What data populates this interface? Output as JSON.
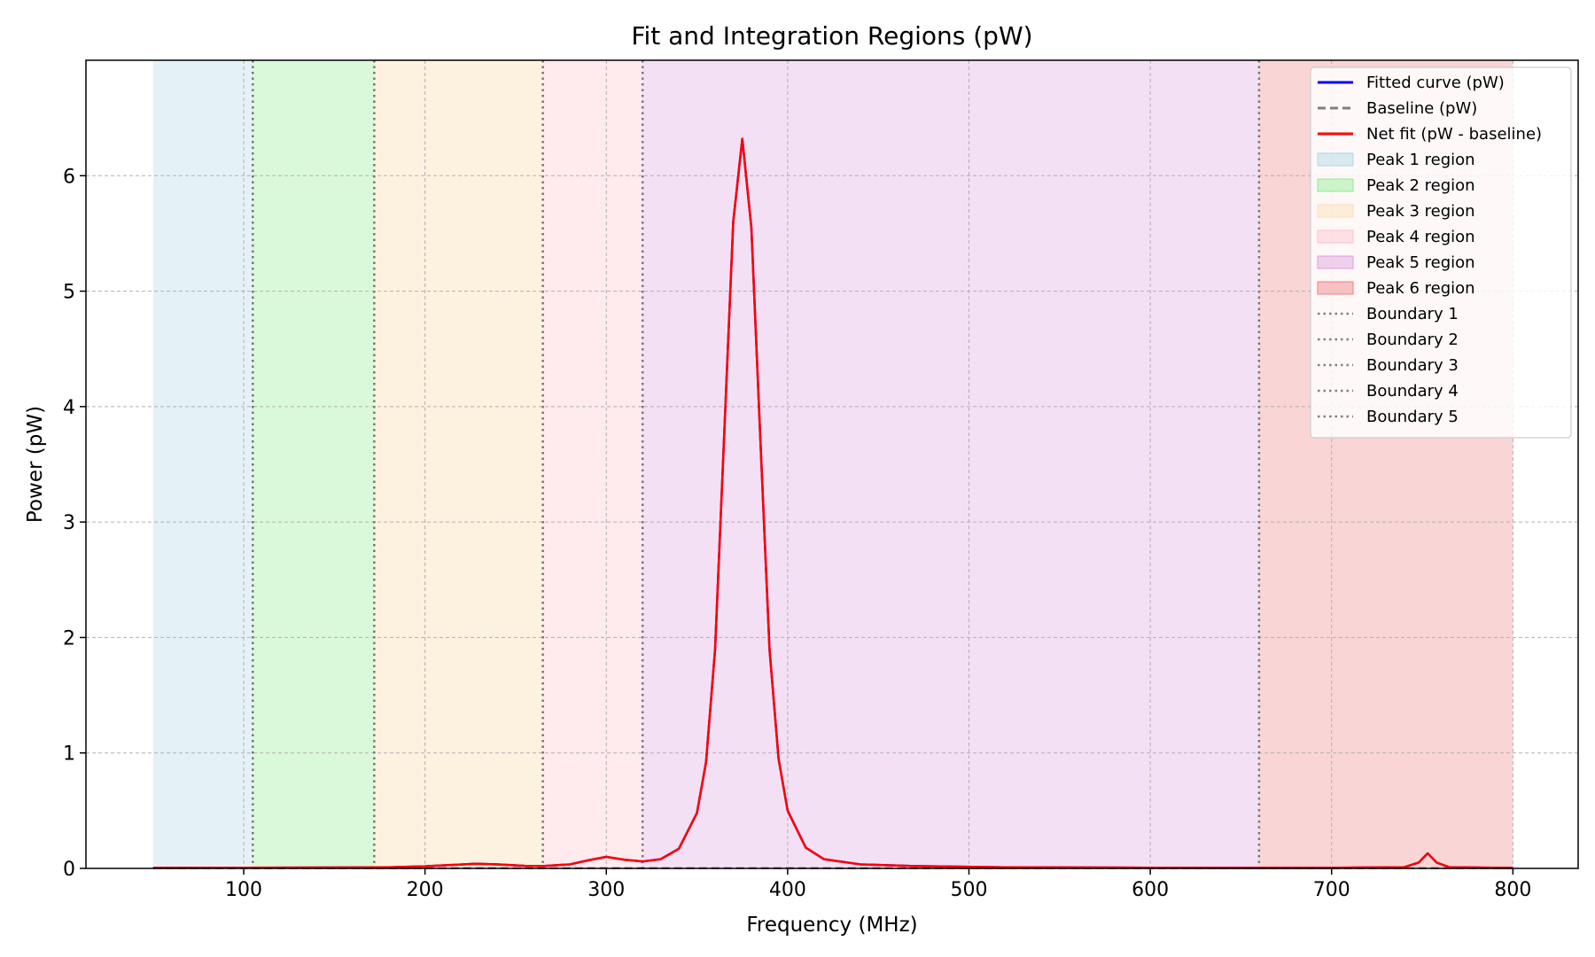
{
  "chart_data": {
    "type": "line",
    "title": "Fit and Integration Regions (pW)",
    "xlabel": "Frequency (MHz)",
    "ylabel": "Power (pW)",
    "xlim": [
      13,
      836
    ],
    "ylim": [
      0,
      7.0
    ],
    "xticks": [
      100,
      200,
      300,
      400,
      500,
      600,
      700,
      800
    ],
    "yticks": [
      0,
      1,
      2,
      3,
      4,
      5,
      6
    ],
    "grid": true,
    "legend_position": "top-right",
    "regions": [
      {
        "name": "Peak 1 region",
        "x0": 50,
        "x1": 105,
        "color": "#add8e6",
        "opacity": 0.33
      },
      {
        "name": "Peak 2 region",
        "x0": 105,
        "x1": 172,
        "color": "#90ee90",
        "opacity": 0.33
      },
      {
        "name": "Peak 3 region",
        "x0": 172,
        "x1": 265,
        "color": "#fbe0b3",
        "opacity": 0.42
      },
      {
        "name": "Peak 4 region",
        "x0": 265,
        "x1": 320,
        "color": "#ffc0cb",
        "opacity": 0.33
      },
      {
        "name": "Peak 5 region",
        "x0": 320,
        "x1": 660,
        "color": "#dda0dd",
        "opacity": 0.33
      },
      {
        "name": "Peak 6 region",
        "x0": 660,
        "x1": 800,
        "color": "#f08080",
        "opacity": 0.33
      }
    ],
    "boundaries": [
      {
        "name": "Boundary 1",
        "x": 105
      },
      {
        "name": "Boundary 2",
        "x": 172
      },
      {
        "name": "Boundary 3",
        "x": 265
      },
      {
        "name": "Boundary 4",
        "x": 320
      },
      {
        "name": "Boundary 5",
        "x": 660
      }
    ],
    "series": [
      {
        "name": "Fitted curve (pW)",
        "style": "solid",
        "color": "#0000ff",
        "x": [
          50,
          100,
          150,
          180,
          200,
          215,
          228,
          240,
          255,
          265,
          280,
          290,
          300,
          310,
          320,
          330,
          340,
          350,
          355,
          360,
          365,
          370,
          375,
          380,
          385,
          390,
          395,
          400,
          410,
          420,
          440,
          470,
          520,
          600,
          660,
          700,
          740,
          748,
          753,
          758,
          765,
          800
        ],
        "y": [
          0.005,
          0.006,
          0.008,
          0.01,
          0.018,
          0.03,
          0.04,
          0.035,
          0.022,
          0.02,
          0.035,
          0.07,
          0.1,
          0.075,
          0.06,
          0.08,
          0.17,
          0.48,
          0.92,
          1.9,
          3.75,
          5.6,
          6.32,
          5.55,
          3.7,
          1.9,
          0.95,
          0.5,
          0.18,
          0.08,
          0.035,
          0.02,
          0.01,
          0.006,
          0.005,
          0.005,
          0.01,
          0.05,
          0.13,
          0.05,
          0.01,
          0.004
        ]
      },
      {
        "name": "Baseline (pW)",
        "style": "dashed",
        "color": "#808080",
        "x": [
          50,
          800
        ],
        "y": [
          0.002,
          0.002
        ]
      },
      {
        "name": "Net fit (pW - baseline)",
        "style": "solid",
        "color": "#ff0000",
        "x": [
          50,
          100,
          150,
          180,
          200,
          215,
          228,
          240,
          255,
          265,
          280,
          290,
          300,
          310,
          320,
          330,
          340,
          350,
          355,
          360,
          365,
          370,
          375,
          380,
          385,
          390,
          395,
          400,
          410,
          420,
          440,
          470,
          520,
          600,
          660,
          700,
          740,
          748,
          753,
          758,
          765,
          800
        ],
        "y": [
          0.005,
          0.006,
          0.008,
          0.01,
          0.018,
          0.03,
          0.04,
          0.035,
          0.022,
          0.02,
          0.035,
          0.07,
          0.1,
          0.075,
          0.06,
          0.08,
          0.17,
          0.48,
          0.92,
          1.9,
          3.75,
          5.6,
          6.32,
          5.55,
          3.7,
          1.9,
          0.95,
          0.5,
          0.18,
          0.08,
          0.035,
          0.02,
          0.01,
          0.006,
          0.005,
          0.005,
          0.01,
          0.05,
          0.13,
          0.05,
          0.01,
          0.004
        ]
      }
    ],
    "legend": [
      {
        "label": "Fitted curve (pW)",
        "kind": "line",
        "color": "#0000ff",
        "style": "solid"
      },
      {
        "label": "Baseline (pW)",
        "kind": "line",
        "color": "#808080",
        "style": "dashed"
      },
      {
        "label": "Net fit (pW - baseline)",
        "kind": "line",
        "color": "#ff0000",
        "style": "solid"
      },
      {
        "label": "Peak 1 region",
        "kind": "patch",
        "color": "#add8e6"
      },
      {
        "label": "Peak 2 region",
        "kind": "patch",
        "color": "#90ee90"
      },
      {
        "label": "Peak 3 region",
        "kind": "patch",
        "color": "#fbe0b3"
      },
      {
        "label": "Peak 4 region",
        "kind": "patch",
        "color": "#ffc0cb"
      },
      {
        "label": "Peak 5 region",
        "kind": "patch",
        "color": "#dda0dd"
      },
      {
        "label": "Peak 6 region",
        "kind": "patch",
        "color": "#f08080"
      },
      {
        "label": "Boundary 1",
        "kind": "line",
        "color": "#808080",
        "style": "dotted"
      },
      {
        "label": "Boundary 2",
        "kind": "line",
        "color": "#808080",
        "style": "dotted"
      },
      {
        "label": "Boundary 3",
        "kind": "line",
        "color": "#808080",
        "style": "dotted"
      },
      {
        "label": "Boundary 4",
        "kind": "line",
        "color": "#808080",
        "style": "dotted"
      },
      {
        "label": "Boundary 5",
        "kind": "line",
        "color": "#808080",
        "style": "dotted"
      }
    ]
  }
}
